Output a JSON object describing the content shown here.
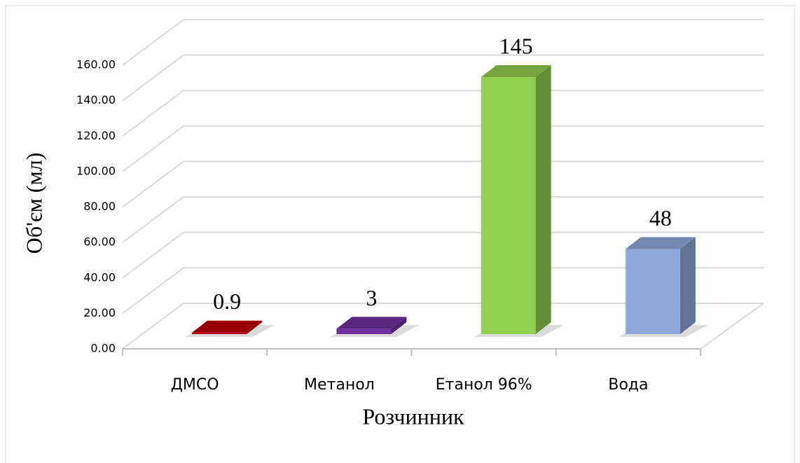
{
  "chart_data": {
    "type": "bar3d",
    "y_label": "Об'єм (мл)",
    "x_label": "Розчинник",
    "categories": [
      "ДМСО",
      "Метанол",
      "Етанол 96%",
      "Вода"
    ],
    "values": [
      0.9,
      3,
      145,
      48
    ],
    "colors": [
      "#c00000",
      "#7030a0",
      "#92d050",
      "#8eaadb"
    ],
    "ylim": [
      0,
      160
    ],
    "yticks": [
      {
        "value": 0,
        "label": "0.00"
      },
      {
        "value": 20,
        "label": "20.00"
      },
      {
        "value": 40,
        "label": "40.00"
      },
      {
        "value": 60,
        "label": "60.00"
      },
      {
        "value": 80,
        "label": "80.00"
      },
      {
        "value": 100,
        "label": "100.00"
      },
      {
        "value": 120,
        "label": "120.00"
      },
      {
        "value": 140,
        "label": "140.00"
      },
      {
        "value": 160,
        "label": "160.00"
      }
    ],
    "grid": true
  }
}
